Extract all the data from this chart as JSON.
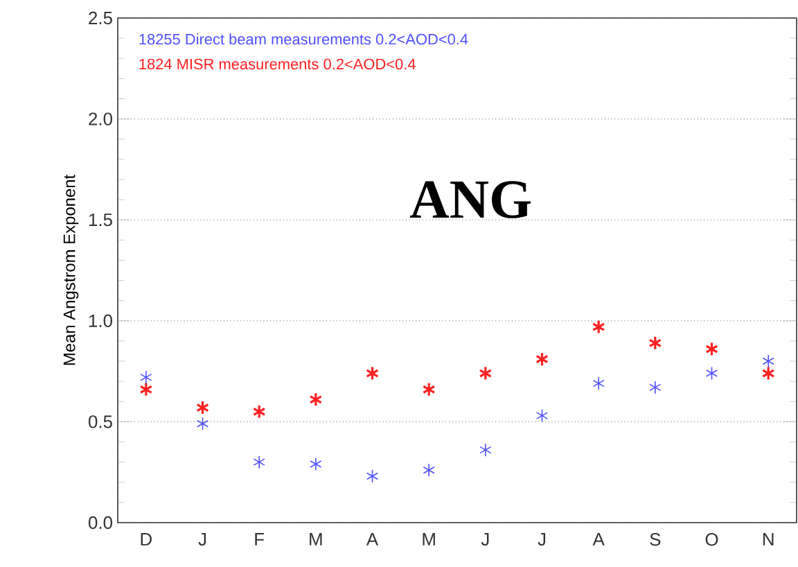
{
  "chart_data": {
    "type": "scatter",
    "ylabel": "Mean Angstrom Exponent",
    "categories": [
      "D",
      "J",
      "F",
      "M",
      "A",
      "M",
      "J",
      "J",
      "A",
      "S",
      "O",
      "N"
    ],
    "series": [
      {
        "name": "18255 Direct beam measurements   0.2<AOD<0.4",
        "color": "#5050ff",
        "values": [
          0.72,
          0.49,
          0.3,
          0.29,
          0.23,
          0.26,
          0.36,
          0.53,
          0.69,
          0.67,
          0.74,
          0.8
        ]
      },
      {
        "name": "1824 MISR measurements   0.2<AOD<0.4",
        "color": "#ff2020",
        "values": [
          0.66,
          0.57,
          0.55,
          0.61,
          0.74,
          0.66,
          0.74,
          0.81,
          0.97,
          0.89,
          0.86,
          0.74
        ]
      }
    ],
    "ylim": [
      0,
      2.5
    ],
    "yticks": [
      {
        "value": 0,
        "label": "0.0"
      },
      {
        "value": 0.5,
        "label": "0.5"
      },
      {
        "value": 1,
        "label": "1.0"
      },
      {
        "value": 1.5,
        "label": "1.5"
      },
      {
        "value": 2,
        "label": "2.0"
      },
      {
        "value": 2.5,
        "label": "2.5"
      }
    ],
    "annotations": [
      "ANG"
    ],
    "grid": "y",
    "legend": "top left",
    "marker": "cross"
  }
}
